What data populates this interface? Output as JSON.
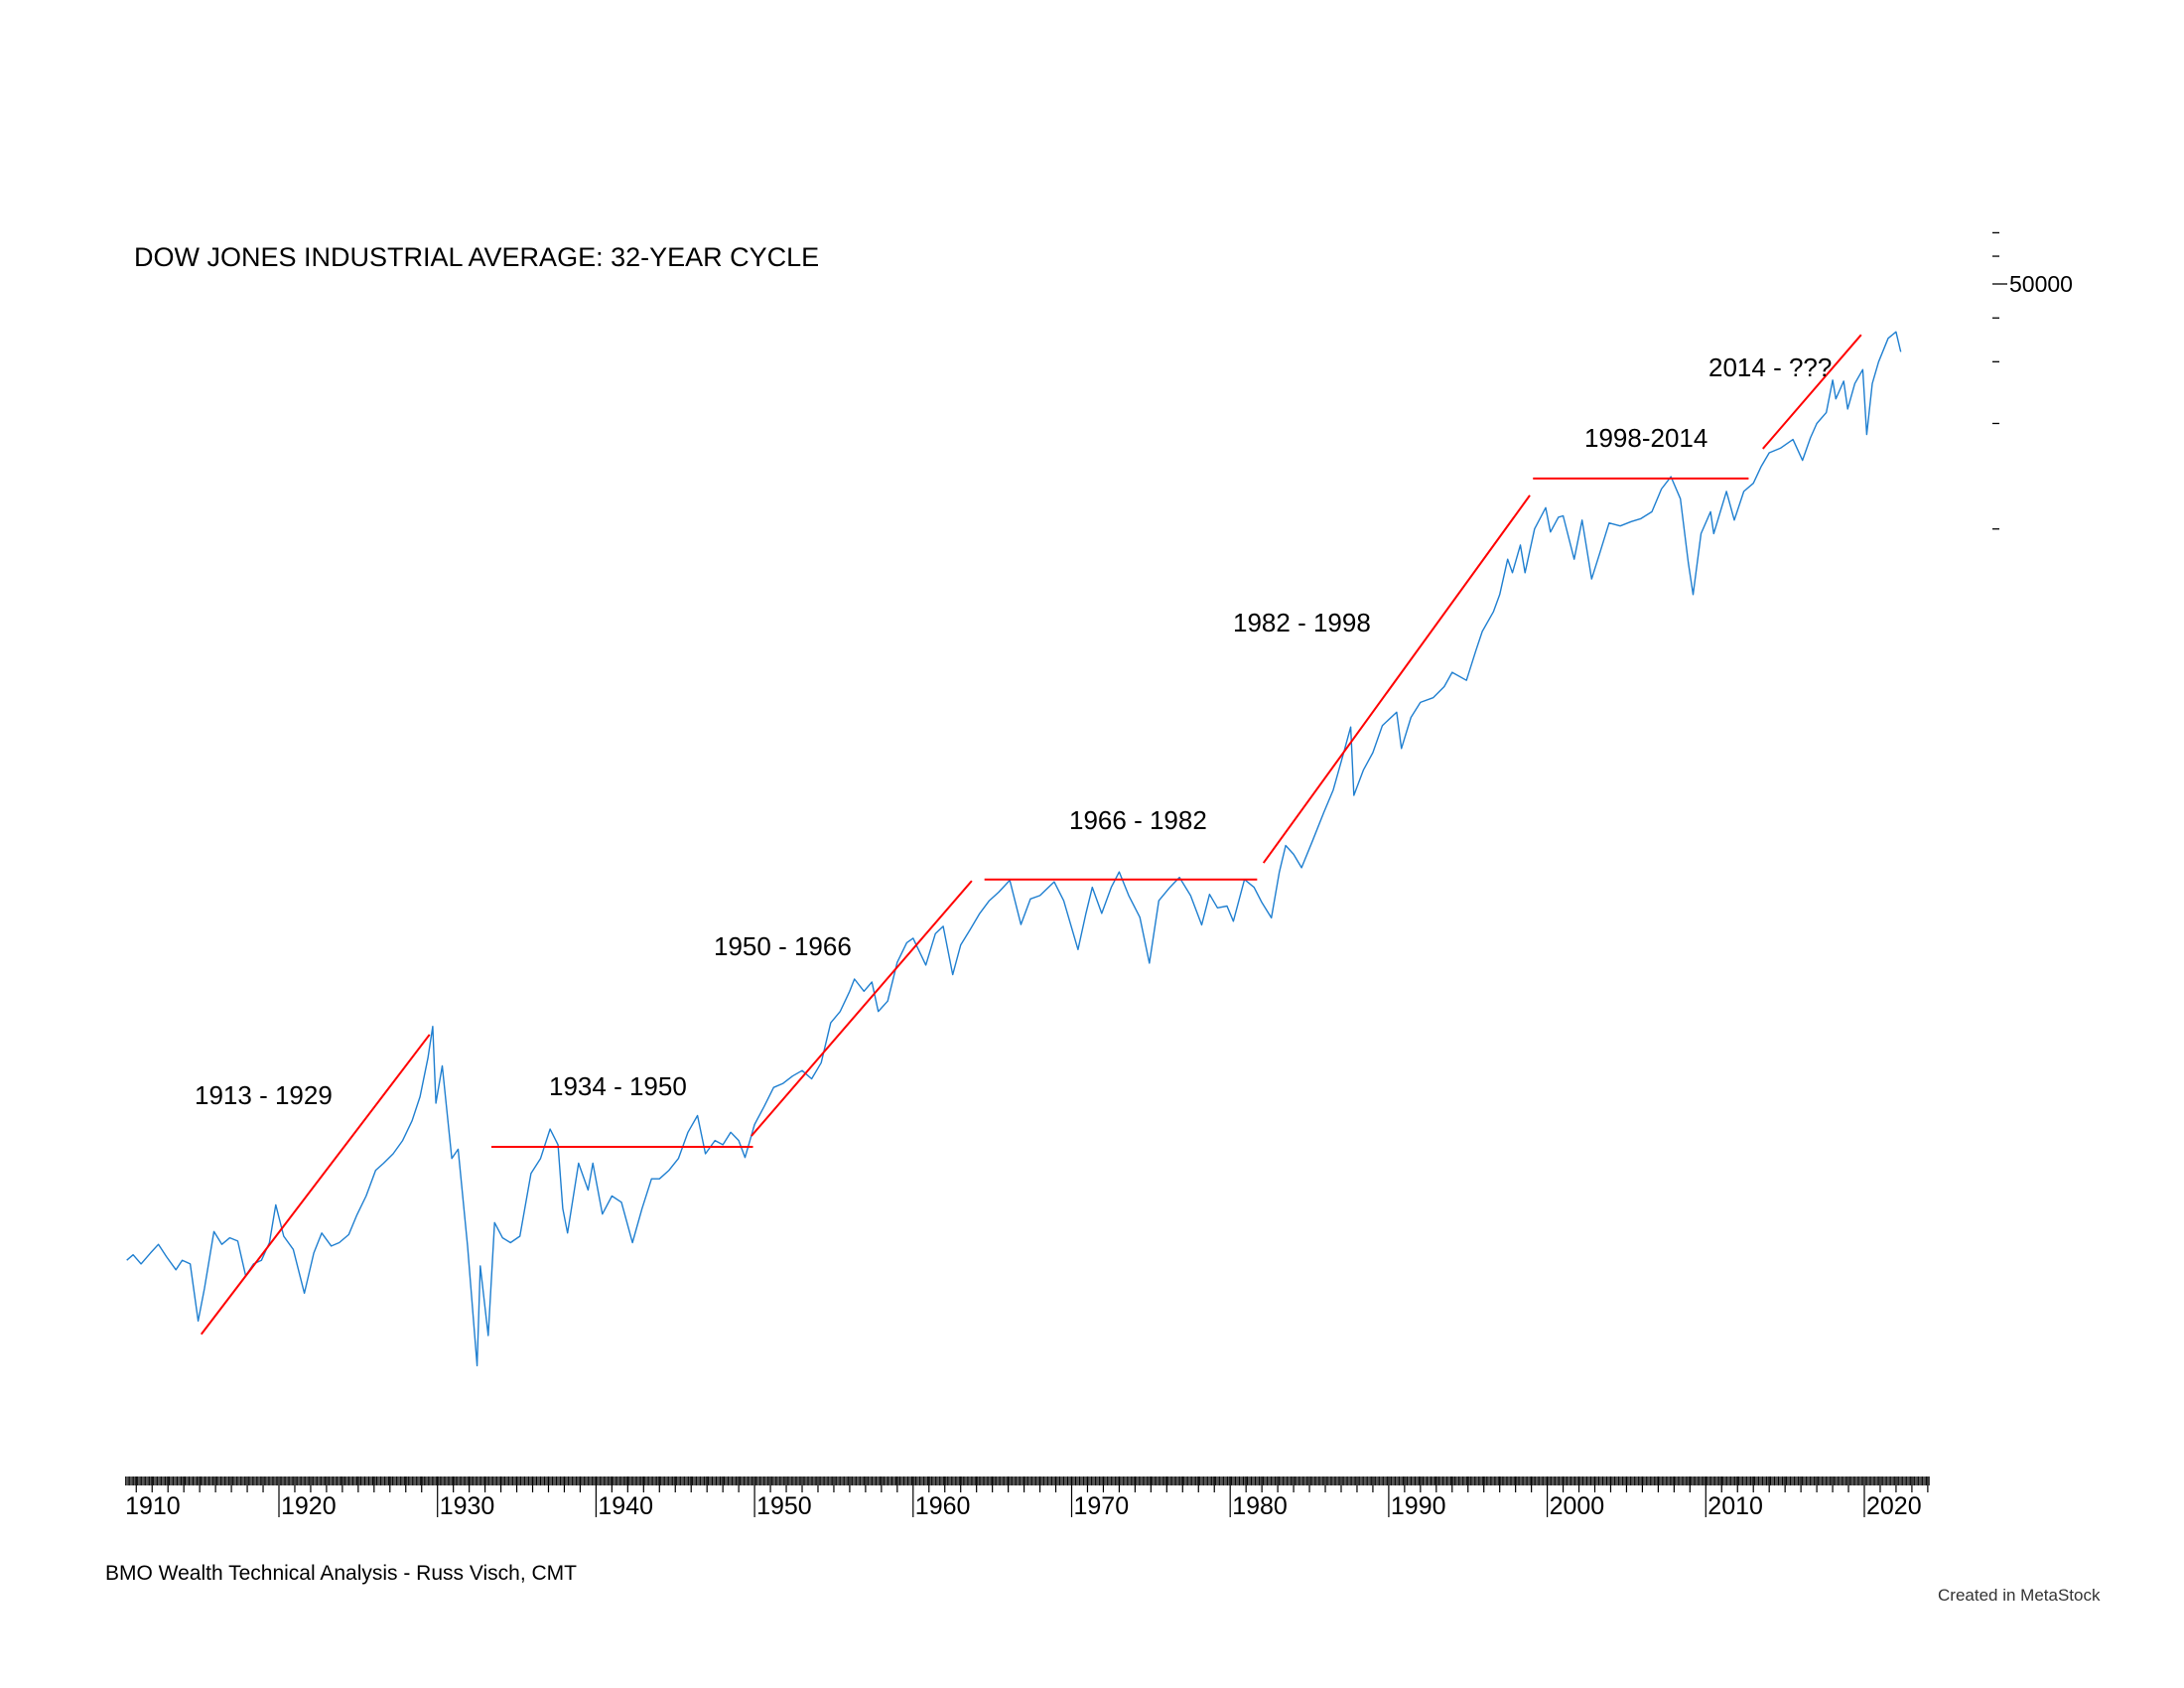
{
  "chart_data": {
    "type": "line",
    "title": "DOW JONES INDUSTRIAL AVERAGE: 32-YEAR CYCLE",
    "xlabel": "",
    "ylabel": "",
    "y_scale": "log",
    "xlim": [
      1910.3,
      2024.1
    ],
    "x_ticks": [
      "1910",
      "1920",
      "1930",
      "1940",
      "1950",
      "1960",
      "1970",
      "1980",
      "1990",
      "2000",
      "2010",
      "2020"
    ],
    "y_tick_values": [
      10000,
      20000,
      30000,
      40000,
      50000,
      60000,
      70000
    ],
    "y_tick_labels": {
      "50000": "50000"
    },
    "grid": false,
    "series_color": "#1f7fd0",
    "trend_color": "#ff0000",
    "series": [
      {
        "x": [
          1910.4,
          1910.8,
          1911.3,
          1911.9,
          1912.4,
          1912.9,
          1913.5,
          1913.9,
          1914.4,
          1914.9,
          1915.3,
          1915.9,
          1916.4,
          1916.9,
          1917.4,
          1917.9,
          1918.4,
          1918.9,
          1919.4,
          1919.8,
          1920.3,
          1920.9,
          1921.6,
          1922.2,
          1922.7,
          1923.3,
          1923.8,
          1924.4,
          1924.9,
          1925.5,
          1926.1,
          1926.6,
          1927.2,
          1927.8,
          1928.4,
          1928.9,
          1929.4,
          1929.7,
          1929.9,
          1930.3,
          1930.9,
          1931.3,
          1931.9,
          1932.5,
          1932.7,
          1933.2,
          1933.6,
          1934.1,
          1934.6,
          1935.2,
          1935.9,
          1936.5,
          1937.1,
          1937.6,
          1937.9,
          1938.2,
          1938.9,
          1939.5,
          1939.8,
          1940.4,
          1941.0,
          1941.6,
          1942.3,
          1942.9,
          1943.5,
          1944.0,
          1944.6,
          1945.2,
          1945.8,
          1946.4,
          1946.9,
          1947.5,
          1948.0,
          1948.5,
          1949.0,
          1949.4,
          1950.0,
          1950.6,
          1951.2,
          1951.8,
          1952.4,
          1953.0,
          1953.6,
          1954.2,
          1954.8,
          1955.4,
          1956.0,
          1956.3,
          1956.9,
          1957.4,
          1957.8,
          1958.4,
          1959.0,
          1959.6,
          1960.0,
          1960.8,
          1961.4,
          1961.9,
          1962.5,
          1963.0,
          1963.6,
          1964.2,
          1964.8,
          1965.4,
          1966.1,
          1966.8,
          1967.4,
          1968.0,
          1968.9,
          1969.5,
          1970.4,
          1970.9,
          1971.3,
          1971.9,
          1972.5,
          1973.0,
          1973.6,
          1974.3,
          1974.9,
          1975.5,
          1976.2,
          1976.8,
          1977.5,
          1978.2,
          1978.7,
          1979.2,
          1979.8,
          1980.2,
          1980.9,
          1981.5,
          1982.0,
          1982.6,
          1983.1,
          1983.5,
          1984.0,
          1984.5,
          1985.2,
          1985.9,
          1986.5,
          1987.1,
          1987.6,
          1987.8,
          1988.4,
          1989.0,
          1989.6,
          1990.5,
          1990.8,
          1991.4,
          1992.0,
          1992.8,
          1993.5,
          1994.0,
          1994.9,
          1995.5,
          1995.9,
          1996.6,
          1997.0,
          1997.5,
          1997.8,
          1998.3,
          1998.6,
          1999.2,
          1999.9,
          2000.2,
          2000.7,
          2001.0,
          2001.7,
          2002.2,
          2002.8,
          2003.3,
          2003.9,
          2004.6,
          2005.3,
          2005.9,
          2006.6,
          2007.2,
          2007.8,
          2008.4,
          2008.9,
          2009.2,
          2009.7,
          2010.3,
          2010.5,
          2011.3,
          2011.8,
          2012.4,
          2013.0,
          2013.5,
          2014.0,
          2014.7,
          2015.5,
          2016.1,
          2016.6,
          2017.0,
          2017.6,
          2018.0,
          2018.2,
          2018.7,
          2018.95,
          2019.4,
          2019.9,
          2020.15,
          2020.5,
          2020.9,
          2021.5,
          2022.0,
          2022.3
        ],
        "values": [
          82,
          85,
          80,
          86,
          91,
          84,
          77,
          82,
          80,
          55,
          68,
          99,
          91,
          95,
          93,
          74,
          80,
          82,
          92,
          118,
          96,
          88,
          66,
          86,
          98,
          90,
          92,
          97,
          110,
          125,
          148,
          155,
          165,
          180,
          205,
          240,
          310,
          381,
          230,
          294,
          160,
          170,
          90,
          41,
          79,
          50,
          105,
          95,
          92,
          96,
          145,
          160,
          194,
          175,
          115,
          98,
          155,
          130,
          155,
          111,
          125,
          120,
          92,
          115,
          140,
          140,
          148,
          160,
          190,
          212,
          165,
          180,
          175,
          190,
          180,
          161,
          200,
          225,
          255,
          262,
          275,
          285,
          270,
          300,
          390,
          420,
          480,
          520,
          480,
          510,
          420,
          450,
          580,
          660,
          680,
          570,
          700,
          735,
          535,
          650,
          720,
          800,
          870,
          920,
          995,
          744,
          880,
          900,
          985,
          870,
          631,
          800,
          950,
          800,
          950,
          1051,
          900,
          780,
          577,
          870,
          950,
          1014,
          900,
          742,
          907,
          830,
          840,
          760,
          1000,
          950,
          860,
          777,
          1050,
          1250,
          1180,
          1080,
          1290,
          1550,
          1800,
          2250,
          2722,
          1738,
          2050,
          2300,
          2750,
          3000,
          2365,
          2900,
          3200,
          3300,
          3550,
          3900,
          3700,
          4500,
          5100,
          5800,
          6500,
          8200,
          7500,
          9000,
          7500,
          10000,
          11500,
          9800,
          10800,
          10900,
          8200,
          10600,
          7200,
          8500,
          10400,
          10200,
          10500,
          10700,
          11200,
          13000,
          14100,
          12200,
          8000,
          6500,
          9700,
          11200,
          9700,
          12800,
          10600,
          12800,
          13500,
          15100,
          16500,
          17000,
          18000,
          15700,
          18200,
          20000,
          21500,
          26600,
          23500,
          26400,
          22000,
          26000,
          28500,
          18600,
          26000,
          30000,
          35000,
          36500,
          32000
        ]
      }
    ],
    "trend_lines": [
      {
        "label": "1913 - 1929",
        "from": [
          1915.1,
          50.4
        ],
        "to": [
          1929.5,
          361
        ]
      },
      {
        "label": "1934 - 1950",
        "from": [
          1933.4,
          172.6
        ],
        "to": [
          1949.9,
          172.6
        ]
      },
      {
        "label": "1950 - 1966",
        "from": [
          1949.8,
          185.5
        ],
        "to": [
          1963.7,
          991
        ]
      },
      {
        "label": "1966 - 1982",
        "from": [
          1964.5,
          1000
        ],
        "to": [
          1981.7,
          1000
        ]
      },
      {
        "label": "1982 - 1998",
        "from": [
          1982.1,
          1115
        ],
        "to": [
          1998.9,
          12470
        ]
      },
      {
        "label": "1998-2014",
        "from": [
          1999.1,
          13930
        ],
        "to": [
          2012.7,
          13930
        ]
      },
      {
        "label": "2014 - ???",
        "from": [
          2013.6,
          16940
        ],
        "to": [
          2019.8,
          35800
        ]
      }
    ],
    "annotations": [
      "1913 - 1929",
      "1934 - 1950",
      "1950 - 1966",
      "1966 - 1982",
      "1982 - 1998",
      "1998-2014",
      "2014 - ???"
    ]
  },
  "footer": {
    "credit": "BMO Wealth Technical Analysis  - Russ Visch, CMT",
    "software": "Created in MetaStock"
  }
}
